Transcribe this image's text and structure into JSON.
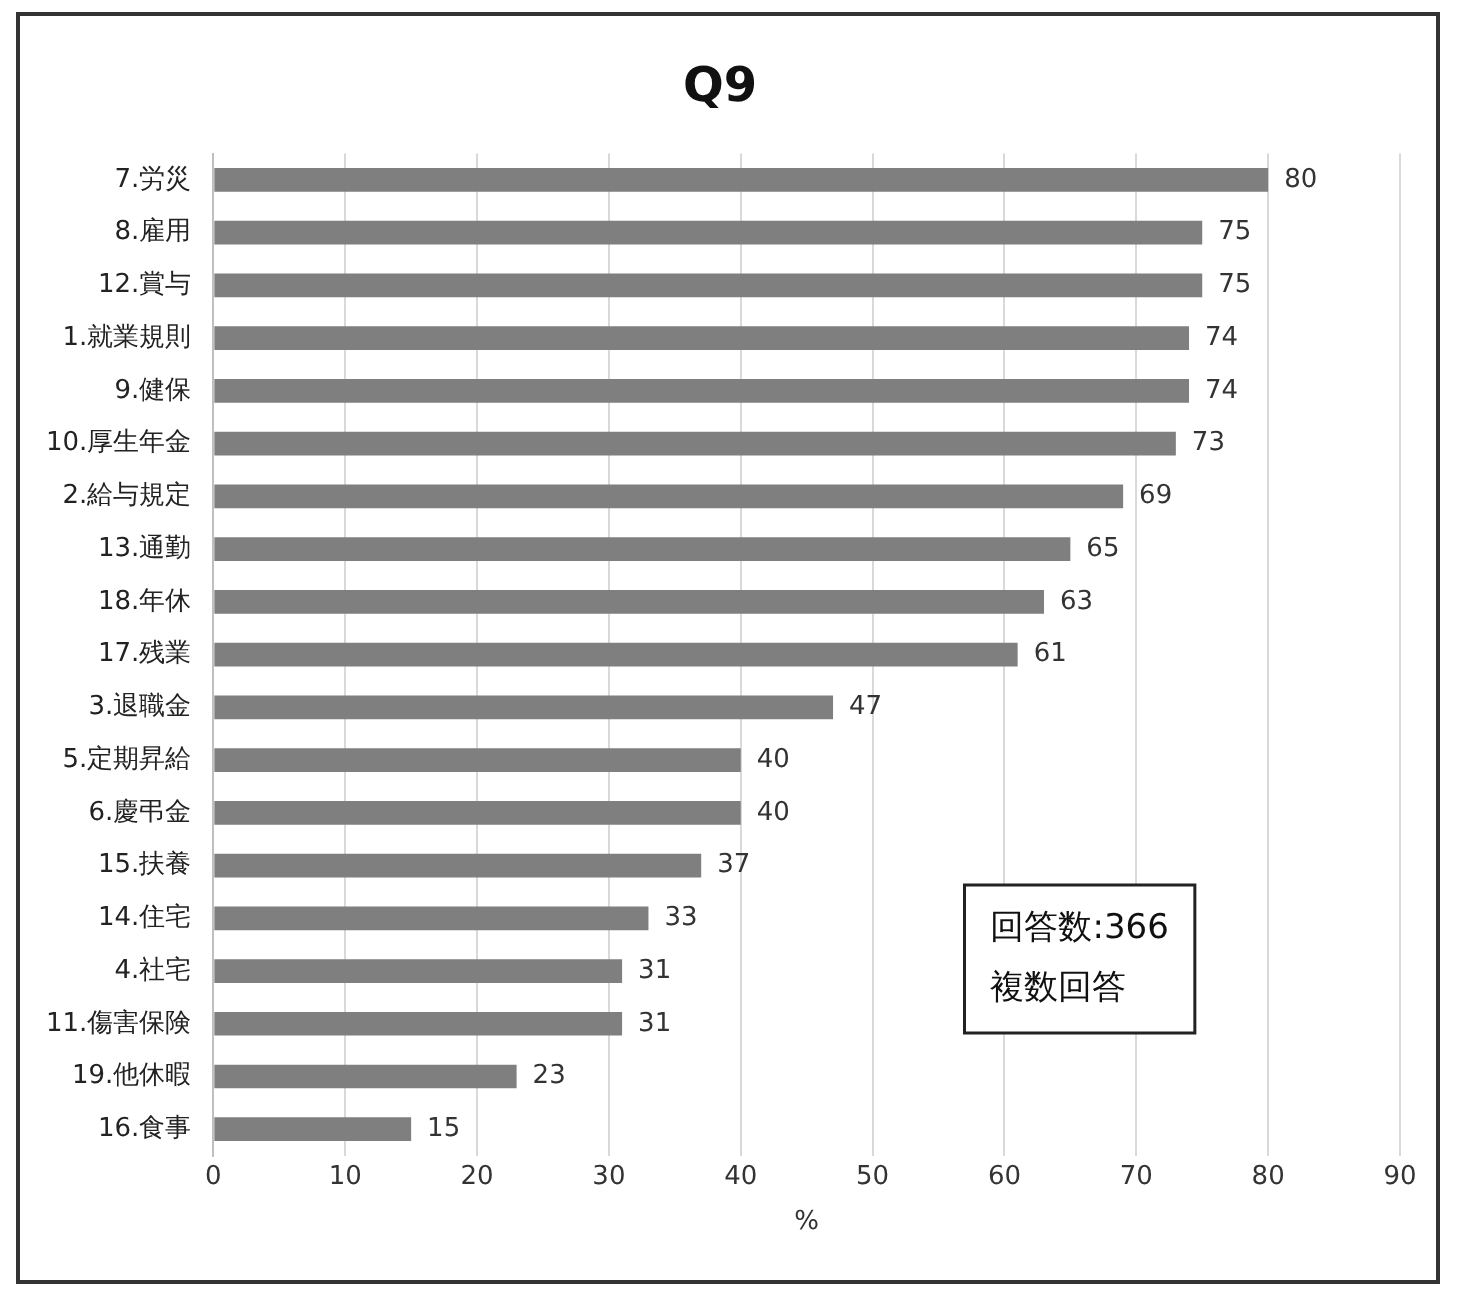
{
  "chart_data": {
    "type": "bar",
    "orientation": "horizontal",
    "title": "Q9",
    "xlabel": "%",
    "categories": [
      "7.労災",
      "8.雇用",
      "12.賞与",
      "1.就業規則",
      "9.健保",
      "10.厚生年金",
      "2.給与規定",
      "13.通勤",
      "18.年休",
      "17.残業",
      "3.退職金",
      "5.定期昇給",
      "6.慶弔金",
      "15.扶養",
      "14.住宅",
      "4.社宅",
      "11.傷害保険",
      "19.他休暇",
      "16.食事"
    ],
    "values": [
      80,
      75,
      75,
      74,
      74,
      73,
      69,
      65,
      63,
      61,
      47,
      40,
      40,
      37,
      33,
      31,
      31,
      23,
      15
    ],
    "color": "#7f7f7f",
    "xlim": [
      0,
      90
    ],
    "xticks": [
      0,
      10,
      20,
      30,
      40,
      50,
      60,
      70,
      80,
      90
    ],
    "grid": "x",
    "data_labels": true,
    "legend": false,
    "annotations": [
      "回答数:366",
      "複数回答"
    ]
  }
}
